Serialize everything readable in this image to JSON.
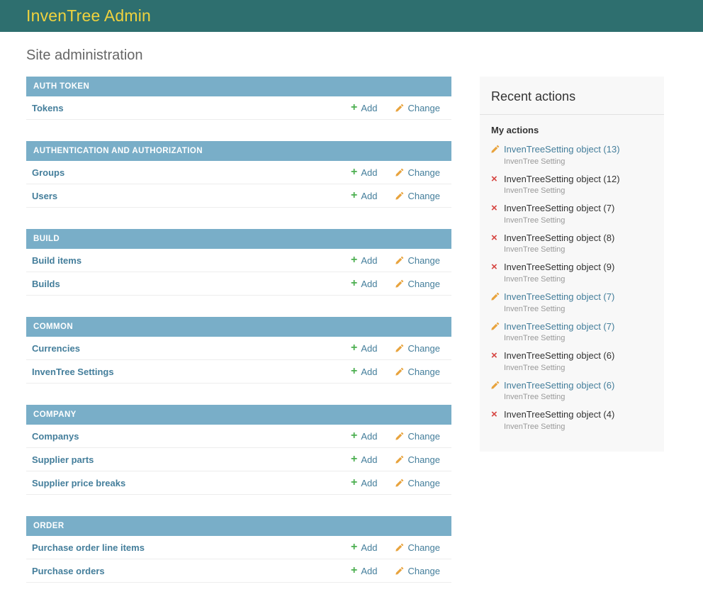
{
  "header": {
    "title": "InvenTree Admin"
  },
  "page": {
    "title": "Site administration"
  },
  "labels": {
    "add": "Add",
    "change": "Change"
  },
  "modules": [
    {
      "name": "AUTH TOKEN",
      "rows": [
        {
          "label": "Tokens"
        }
      ]
    },
    {
      "name": "AUTHENTICATION AND AUTHORIZATION",
      "rows": [
        {
          "label": "Groups"
        },
        {
          "label": "Users"
        }
      ]
    },
    {
      "name": "BUILD",
      "rows": [
        {
          "label": "Build items"
        },
        {
          "label": "Builds"
        }
      ]
    },
    {
      "name": "COMMON",
      "rows": [
        {
          "label": "Currencies"
        },
        {
          "label": "InvenTree Settings"
        }
      ]
    },
    {
      "name": "COMPANY",
      "rows": [
        {
          "label": "Companys"
        },
        {
          "label": "Supplier parts"
        },
        {
          "label": "Supplier price breaks"
        }
      ]
    },
    {
      "name": "ORDER",
      "rows": [
        {
          "label": "Purchase order line items"
        },
        {
          "label": "Purchase orders"
        }
      ]
    }
  ],
  "sidebar": {
    "title": "Recent actions",
    "subtitle": "My actions",
    "items": [
      {
        "type": "change",
        "label": "InvenTreeSetting object (13)",
        "model": "InvenTree Setting"
      },
      {
        "type": "delete",
        "label": "InvenTreeSetting object (12)",
        "model": "InvenTree Setting"
      },
      {
        "type": "delete",
        "label": "InvenTreeSetting object (7)",
        "model": "InvenTree Setting"
      },
      {
        "type": "delete",
        "label": "InvenTreeSetting object (8)",
        "model": "InvenTree Setting"
      },
      {
        "type": "delete",
        "label": "InvenTreeSetting object (9)",
        "model": "InvenTree Setting"
      },
      {
        "type": "change",
        "label": "InvenTreeSetting object (7)",
        "model": "InvenTree Setting"
      },
      {
        "type": "change",
        "label": "InvenTreeSetting object (7)",
        "model": "InvenTree Setting"
      },
      {
        "type": "delete",
        "label": "InvenTreeSetting object (6)",
        "model": "InvenTree Setting"
      },
      {
        "type": "change",
        "label": "InvenTreeSetting object (6)",
        "model": "InvenTree Setting"
      },
      {
        "type": "delete",
        "label": "InvenTreeSetting object (4)",
        "model": "InvenTree Setting"
      }
    ]
  },
  "colors": {
    "header-bg": "#2e6f6f",
    "header-title": "#efd23e",
    "caption-bg": "#79aec8",
    "link": "#447e9b",
    "add-green": "#4caf50",
    "pencil-orange": "#e8a33d",
    "delete-red": "#d64541",
    "sidebar-bg": "#f8f8f8"
  }
}
